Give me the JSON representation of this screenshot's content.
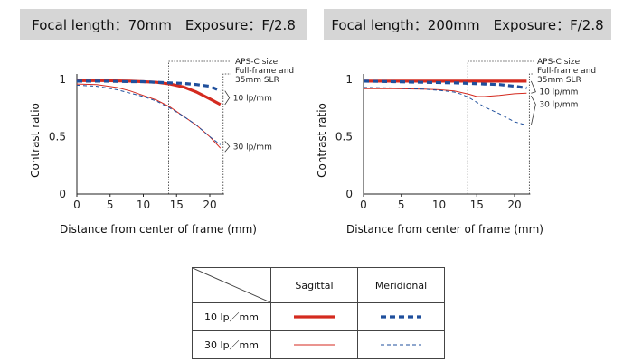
{
  "chart_data": [
    {
      "type": "line",
      "title": "Focal length：70mm　Exposure：F/2.8",
      "xlabel": "Distance from center of frame (mm)",
      "ylabel": "Contrast ratio",
      "xlim": [
        0,
        21.6
      ],
      "ylim": [
        0,
        1
      ],
      "xticks": [
        "0",
        "5",
        "10",
        "15",
        "20"
      ],
      "yticks": [
        "0",
        "0.5",
        "1"
      ],
      "series": [
        {
          "key": "sag10",
          "x": [
            0,
            4,
            8,
            10,
            12,
            14,
            16,
            18,
            20,
            21.6
          ],
          "values": [
            0.99,
            0.99,
            0.985,
            0.98,
            0.975,
            0.96,
            0.935,
            0.89,
            0.83,
            0.78
          ]
        },
        {
          "key": "mer10",
          "x": [
            0,
            4,
            8,
            10,
            12,
            14,
            16,
            18,
            20,
            21.6
          ],
          "values": [
            0.985,
            0.985,
            0.98,
            0.98,
            0.975,
            0.97,
            0.965,
            0.955,
            0.94,
            0.9
          ]
        },
        {
          "key": "sag30",
          "x": [
            0,
            3,
            6,
            8,
            10,
            12,
            14,
            16,
            18,
            20,
            21.6
          ],
          "values": [
            0.96,
            0.955,
            0.93,
            0.9,
            0.86,
            0.82,
            0.76,
            0.68,
            0.6,
            0.5,
            0.4
          ]
        },
        {
          "key": "mer30",
          "x": [
            0,
            3,
            6,
            8,
            10,
            12,
            14,
            16,
            18,
            20,
            21.6
          ],
          "values": [
            0.95,
            0.94,
            0.91,
            0.88,
            0.85,
            0.81,
            0.75,
            0.68,
            0.6,
            0.5,
            0.43
          ]
        }
      ],
      "annotations": {
        "apsc": "APS-C size",
        "ff_line1": "Full-frame and",
        "ff_line2": "35mm SLR",
        "lp10": "10 lp/mm",
        "lp30": "30 lp/mm"
      },
      "apsc_x": 13.8,
      "ff_x": 21.6
    },
    {
      "type": "line",
      "title": "Focal length：200mm　Exposure：F/2.8",
      "xlabel": "Distance from center of frame (mm)",
      "ylabel": "Contrast ratio",
      "xlim": [
        0,
        21.6
      ],
      "ylim": [
        0,
        1
      ],
      "xticks": [
        "0",
        "5",
        "10",
        "15",
        "20"
      ],
      "yticks": [
        "0",
        "0.5",
        "1"
      ],
      "series": [
        {
          "key": "sag10",
          "x": [
            0,
            4,
            8,
            12,
            16,
            20,
            21.6
          ],
          "values": [
            0.985,
            0.985,
            0.985,
            0.985,
            0.985,
            0.985,
            0.985
          ]
        },
        {
          "key": "mer10",
          "x": [
            0,
            4,
            8,
            12,
            14,
            16,
            18,
            20,
            21.6
          ],
          "values": [
            0.985,
            0.98,
            0.975,
            0.97,
            0.965,
            0.96,
            0.955,
            0.94,
            0.925
          ]
        },
        {
          "key": "sag30",
          "x": [
            0,
            4,
            8,
            10,
            12,
            14,
            15,
            16,
            18,
            20,
            21.6
          ],
          "values": [
            0.92,
            0.92,
            0.915,
            0.91,
            0.9,
            0.87,
            0.85,
            0.85,
            0.86,
            0.875,
            0.88
          ]
        },
        {
          "key": "mer30",
          "x": [
            0,
            4,
            8,
            10,
            12,
            13,
            14,
            15,
            16,
            18,
            20,
            21.6
          ],
          "values": [
            0.93,
            0.925,
            0.915,
            0.905,
            0.89,
            0.87,
            0.84,
            0.8,
            0.76,
            0.7,
            0.63,
            0.6
          ]
        }
      ],
      "annotations": {
        "apsc": "APS-C size",
        "ff_line1": "Full-frame and",
        "ff_line2": "35mm SLR",
        "lp10": "10 lp/mm",
        "lp30": "30 lp/mm"
      },
      "apsc_x": 13.8,
      "ff_x": 21.6
    }
  ],
  "legend": {
    "col_sagittal": "Sagittal",
    "col_meridional": "Meridional",
    "row_10": "10 lp／mm",
    "row_30": "30 lp／mm"
  },
  "colors": {
    "sagittal": "#d42a1f",
    "meridional": "#1f4f9c"
  }
}
